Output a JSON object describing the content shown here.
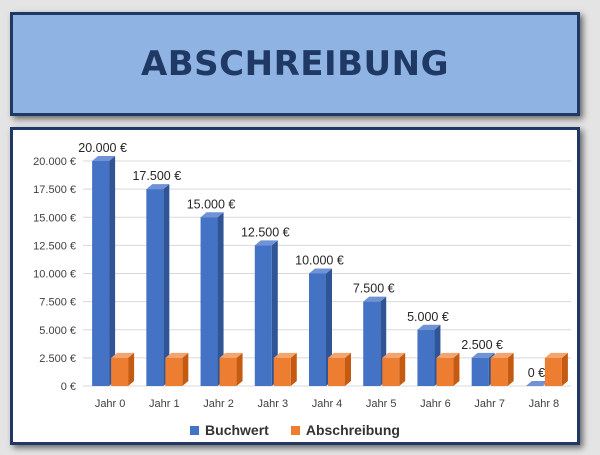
{
  "title": "ABSCHREIBUNG",
  "colors": {
    "buchwert": "#4472c4",
    "buchwert_side": "#2f5597",
    "buchwert_top": "#6f93d4",
    "abschreibung": "#ed7d31",
    "abschreibung_side": "#c55a11",
    "abschreibung_top": "#f4a46e"
  },
  "chart_data": {
    "type": "bar",
    "categories": [
      "Jahr 0",
      "Jahr 1",
      "Jahr 2",
      "Jahr 3",
      "Jahr 4",
      "Jahr 5",
      "Jahr 6",
      "Jahr 7",
      "Jahr 8"
    ],
    "series": [
      {
        "name": "Buchwert",
        "values": [
          20000,
          17500,
          15000,
          12500,
          10000,
          7500,
          5000,
          2500,
          0
        ],
        "data_labels": [
          "20.000 €",
          "17.500 €",
          "15.000 €",
          "12.500 €",
          "10.000 €",
          "7.500 €",
          "5.000 €",
          "2.500 €",
          "0 €"
        ]
      },
      {
        "name": "Abschreibung",
        "values": [
          2500,
          2500,
          2500,
          2500,
          2500,
          2500,
          2500,
          2500,
          2500
        ]
      }
    ],
    "ylim": [
      0,
      20000
    ],
    "y_ticks": [
      0,
      2500,
      5000,
      7500,
      10000,
      12500,
      15000,
      17500,
      20000
    ],
    "y_tick_labels": [
      "0 €",
      "2.500 €",
      "5.000 €",
      "7.500 €",
      "10.000 €",
      "12.500 €",
      "15.000 €",
      "17.500 €",
      "20.000 €"
    ],
    "grid": true,
    "legend": "bottom"
  }
}
